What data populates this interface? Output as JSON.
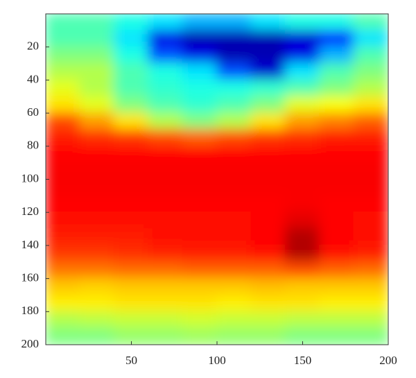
{
  "chart_data": {
    "type": "heatmap",
    "colormap": "jet",
    "xlim": [
      0,
      200
    ],
    "ylim": [
      200,
      0
    ],
    "xticks": [
      50,
      100,
      150,
      200
    ],
    "yticks": [
      20,
      40,
      60,
      80,
      100,
      120,
      140,
      160,
      180,
      200
    ],
    "z": [
      [
        0.45,
        0.45,
        0.4,
        0.35,
        0.3,
        0.3,
        0.35,
        0.4,
        0.4,
        0.45
      ],
      [
        0.45,
        0.45,
        0.35,
        0.1,
        0.05,
        0.05,
        0.05,
        0.08,
        0.15,
        0.35
      ],
      [
        0.5,
        0.5,
        0.4,
        0.2,
        0.1,
        0.05,
        0.05,
        0.1,
        0.3,
        0.45
      ],
      [
        0.55,
        0.55,
        0.45,
        0.4,
        0.35,
        0.2,
        0.08,
        0.35,
        0.45,
        0.5
      ],
      [
        0.6,
        0.55,
        0.45,
        0.42,
        0.4,
        0.4,
        0.42,
        0.45,
        0.5,
        0.55
      ],
      [
        0.65,
        0.6,
        0.5,
        0.45,
        0.42,
        0.45,
        0.5,
        0.6,
        0.62,
        0.65
      ],
      [
        0.8,
        0.72,
        0.65,
        0.55,
        0.5,
        0.55,
        0.65,
        0.72,
        0.75,
        0.78
      ],
      [
        0.85,
        0.83,
        0.82,
        0.8,
        0.78,
        0.8,
        0.82,
        0.83,
        0.85,
        0.85
      ],
      [
        0.87,
        0.87,
        0.87,
        0.87,
        0.87,
        0.87,
        0.87,
        0.87,
        0.87,
        0.87
      ],
      [
        0.88,
        0.88,
        0.88,
        0.88,
        0.88,
        0.88,
        0.88,
        0.88,
        0.88,
        0.88
      ],
      [
        0.88,
        0.88,
        0.88,
        0.88,
        0.88,
        0.88,
        0.88,
        0.88,
        0.88,
        0.88
      ],
      [
        0.87,
        0.87,
        0.87,
        0.87,
        0.87,
        0.87,
        0.87,
        0.88,
        0.87,
        0.87
      ],
      [
        0.86,
        0.86,
        0.86,
        0.86,
        0.86,
        0.86,
        0.87,
        0.9,
        0.87,
        0.86
      ],
      [
        0.85,
        0.85,
        0.85,
        0.86,
        0.86,
        0.86,
        0.87,
        0.95,
        0.87,
        0.86
      ],
      [
        0.82,
        0.82,
        0.83,
        0.84,
        0.85,
        0.85,
        0.86,
        0.95,
        0.86,
        0.85
      ],
      [
        0.76,
        0.76,
        0.77,
        0.77,
        0.78,
        0.78,
        0.78,
        0.8,
        0.78,
        0.77
      ],
      [
        0.68,
        0.67,
        0.68,
        0.68,
        0.68,
        0.68,
        0.69,
        0.68,
        0.68,
        0.68
      ],
      [
        0.64,
        0.64,
        0.65,
        0.65,
        0.65,
        0.64,
        0.65,
        0.65,
        0.64,
        0.64
      ],
      [
        0.55,
        0.56,
        0.57,
        0.57,
        0.58,
        0.57,
        0.57,
        0.56,
        0.56,
        0.56
      ],
      [
        0.5,
        0.5,
        0.52,
        0.52,
        0.53,
        0.52,
        0.52,
        0.5,
        0.5,
        0.5
      ]
    ]
  }
}
